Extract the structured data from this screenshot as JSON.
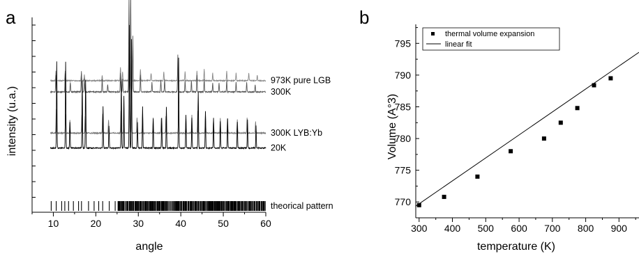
{
  "chart_data": [
    {
      "panel_label": "a",
      "type": "line",
      "xlabel": "angle",
      "ylabel": "intensity (u.a.)",
      "xlim": [
        5,
        60
      ],
      "xticks": [
        10,
        20,
        30,
        40,
        50,
        60
      ],
      "traces": [
        {
          "name": "973K  pure LGB",
          "color": "#888888",
          "baseline_frac": 0.7,
          "peaks": [
            [
              10.6,
              0.05
            ],
            [
              12.8,
              0.05
            ],
            [
              16.6,
              0.04
            ],
            [
              17.3,
              0.03
            ],
            [
              21.5,
              0.03
            ],
            [
              25.8,
              0.07
            ],
            [
              26.3,
              0.05
            ],
            [
              27.8,
              0.18
            ],
            [
              28.3,
              0.16
            ],
            [
              30.5,
              0.06
            ],
            [
              33.0,
              0.04
            ],
            [
              36.0,
              0.05
            ],
            [
              39.3,
              0.08
            ],
            [
              41.0,
              0.05
            ],
            [
              43.8,
              0.05
            ],
            [
              45.5,
              0.06
            ],
            [
              47.5,
              0.04
            ],
            [
              50.8,
              0.05
            ],
            [
              53.0,
              0.04
            ],
            [
              56.0,
              0.04
            ],
            [
              58.0,
              0.03
            ]
          ]
        },
        {
          "name": "300K",
          "color": "#555555",
          "baseline_frac": 0.64,
          "peaks": [
            [
              10.6,
              0.09
            ],
            [
              12.8,
              0.1
            ],
            [
              14.0,
              0.05
            ],
            [
              16.6,
              0.11
            ],
            [
              17.3,
              0.07
            ],
            [
              21.5,
              0.07
            ],
            [
              22.8,
              0.04
            ],
            [
              25.8,
              0.1
            ],
            [
              26.3,
              0.07
            ],
            [
              27.8,
              0.5
            ],
            [
              28.2,
              0.55
            ],
            [
              28.7,
              0.3
            ],
            [
              30.5,
              0.09
            ],
            [
              33.2,
              0.05
            ],
            [
              35.3,
              0.06
            ],
            [
              36.2,
              0.07
            ],
            [
              39.3,
              0.2
            ],
            [
              41.0,
              0.06
            ],
            [
              42.5,
              0.06
            ],
            [
              43.8,
              0.09
            ],
            [
              45.5,
              0.07
            ],
            [
              47.5,
              0.05
            ],
            [
              49.0,
              0.05
            ],
            [
              50.8,
              0.06
            ],
            [
              53.0,
              0.05
            ],
            [
              55.5,
              0.05
            ],
            [
              57.5,
              0.04
            ]
          ]
        },
        {
          "name": "300K LYB:Yb",
          "color": "#777777",
          "baseline_frac": 0.42,
          "peaks": [
            [
              10.7,
              0.13
            ],
            [
              12.9,
              0.1
            ],
            [
              13.9,
              0.07
            ],
            [
              16.7,
              0.1
            ],
            [
              17.5,
              0.09
            ],
            [
              21.6,
              0.1
            ],
            [
              23.0,
              0.07
            ],
            [
              25.9,
              0.12
            ],
            [
              26.6,
              0.1
            ],
            [
              27.9,
              0.45
            ],
            [
              28.3,
              0.4
            ],
            [
              29.7,
              0.08
            ],
            [
              31.0,
              0.1
            ],
            [
              33.5,
              0.08
            ],
            [
              35.4,
              0.08
            ],
            [
              36.5,
              0.09
            ],
            [
              39.5,
              0.12
            ],
            [
              41.2,
              0.08
            ],
            [
              42.6,
              0.1
            ],
            [
              44.0,
              0.12
            ],
            [
              45.8,
              0.1
            ],
            [
              47.7,
              0.07
            ],
            [
              49.3,
              0.08
            ],
            [
              51.0,
              0.08
            ],
            [
              53.3,
              0.07
            ],
            [
              55.6,
              0.08
            ],
            [
              57.6,
              0.06
            ]
          ]
        },
        {
          "name": "20K",
          "color": "#000000",
          "baseline_frac": 0.34,
          "peaks": [
            [
              10.8,
              0.46
            ],
            [
              12.9,
              0.46
            ],
            [
              13.9,
              0.14
            ],
            [
              16.8,
              0.36
            ],
            [
              17.6,
              0.36
            ],
            [
              21.7,
              0.22
            ],
            [
              23.1,
              0.12
            ],
            [
              26.0,
              0.36
            ],
            [
              26.6,
              0.28
            ],
            [
              27.9,
              0.66
            ],
            [
              28.4,
              0.58
            ],
            [
              29.8,
              0.14
            ],
            [
              31.0,
              0.22
            ],
            [
              33.5,
              0.16
            ],
            [
              35.5,
              0.16
            ],
            [
              36.6,
              0.22
            ],
            [
              39.5,
              0.48
            ],
            [
              41.2,
              0.18
            ],
            [
              42.6,
              0.16
            ],
            [
              44.1,
              0.3
            ],
            [
              45.8,
              0.2
            ],
            [
              47.7,
              0.16
            ],
            [
              49.3,
              0.14
            ],
            [
              51.0,
              0.16
            ],
            [
              53.3,
              0.14
            ],
            [
              55.7,
              0.15
            ],
            [
              57.7,
              0.12
            ]
          ]
        }
      ],
      "theoretical": {
        "name": "theorical pattern",
        "start": 9.5,
        "end": 60,
        "dense_from": 25
      }
    },
    {
      "panel_label": "b",
      "type": "scatter",
      "xlabel": "temperature (K)",
      "ylabel": "Volume (A°3)",
      "xlim": [
        290,
        960
      ],
      "ylim": [
        767.5,
        798
      ],
      "xticks": [
        300,
        400,
        500,
        600,
        700,
        800,
        900
      ],
      "yticks": [
        770,
        775,
        780,
        785,
        790,
        795
      ],
      "series": [
        {
          "name": "thermal volume expansion",
          "x": [
            300,
            375,
            475,
            575,
            675,
            725,
            775,
            825,
            875
          ],
          "y": [
            769.5,
            770.8,
            774.0,
            778.0,
            780.0,
            782.5,
            784.8,
            788.4,
            789.5
          ]
        }
      ],
      "fit": {
        "name": "linear fit",
        "slope": 0.0362,
        "intercept": 758.85
      }
    }
  ]
}
